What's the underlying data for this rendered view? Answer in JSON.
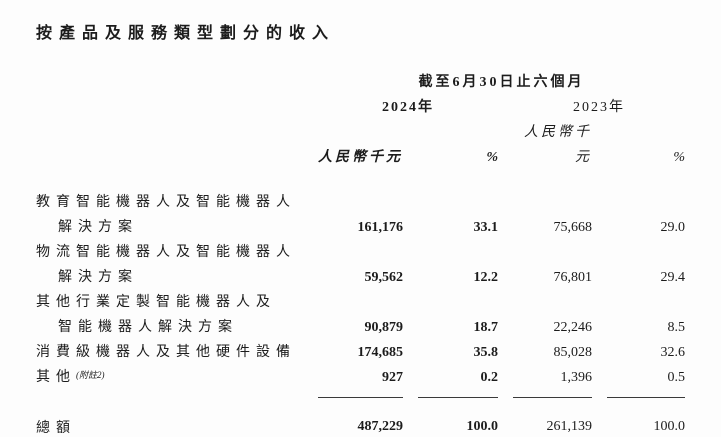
{
  "title": "按產品及服務類型劃分的收入",
  "table": {
    "period_header": "截至6月30日止六個月",
    "year_2024": "2024年",
    "year_2023": "2023年",
    "unit_rmb_2024": "人民幣千元",
    "unit_pct_2024": "%",
    "unit_rmb_2023": "人民幣千元",
    "unit_pct_2023": "%",
    "rows": [
      {
        "label1": "教育智能機器人及智能機器人",
        "label2": "解決方案",
        "amount_2024": "161,176",
        "pct_2024": "33.1",
        "amount_2023": "75,668",
        "pct_2023": "29.0"
      },
      {
        "label1": "物流智能機器人及智能機器人",
        "label2": "解決方案",
        "amount_2024": "59,562",
        "pct_2024": "12.2",
        "amount_2023": "76,801",
        "pct_2023": "29.4"
      },
      {
        "label1": "其他行業定製智能機器人及",
        "label2": "智能機器人解決方案",
        "amount_2024": "90,879",
        "pct_2024": "18.7",
        "amount_2023": "22,246",
        "pct_2023": "8.5"
      },
      {
        "label1": "消費級機器人及其他硬件設備",
        "amount_2024": "174,685",
        "pct_2024": "35.8",
        "amount_2023": "85,028",
        "pct_2023": "32.6"
      },
      {
        "label1": "其他",
        "note": "(附註2)",
        "amount_2024": "927",
        "pct_2024": "0.2",
        "amount_2023": "1,396",
        "pct_2023": "0.5"
      }
    ],
    "total": {
      "label": "總額",
      "amount_2024": "487,229",
      "pct_2024": "100.0",
      "amount_2023": "261,139",
      "pct_2023": "100.0"
    }
  },
  "colors": {
    "background": "#fdfdfd",
    "text": "#1c1c1c",
    "rule": "#3a3a3a"
  }
}
